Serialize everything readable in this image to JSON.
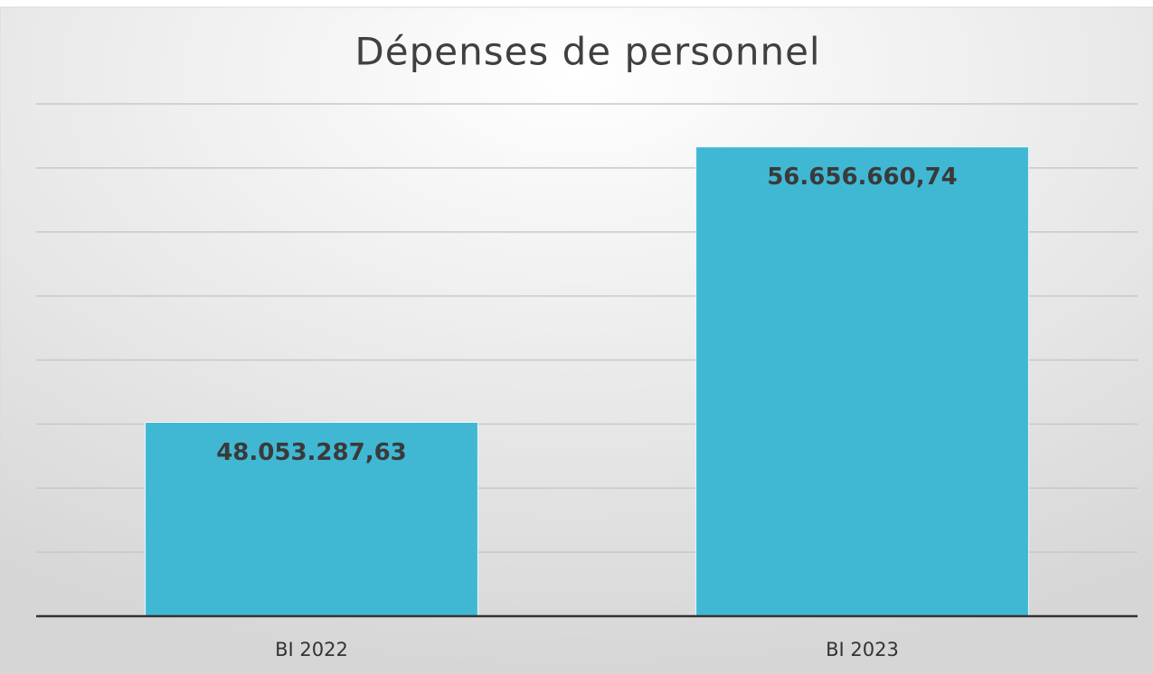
{
  "chart_data": {
    "type": "bar",
    "title": "Dépenses de personnel",
    "categories": [
      "BI 2022",
      "BI 2023"
    ],
    "values": [
      48053287.63,
      56656660.74
    ],
    "value_labels": [
      "48.053.287,63",
      "56.656.660,74"
    ],
    "color": "#40b8d4",
    "ylim": [
      42000000,
      58000000
    ],
    "yticks": [
      42000000,
      44000000,
      46000000,
      48000000,
      50000000,
      52000000,
      54000000,
      56000000,
      58000000
    ],
    "grid": true
  }
}
